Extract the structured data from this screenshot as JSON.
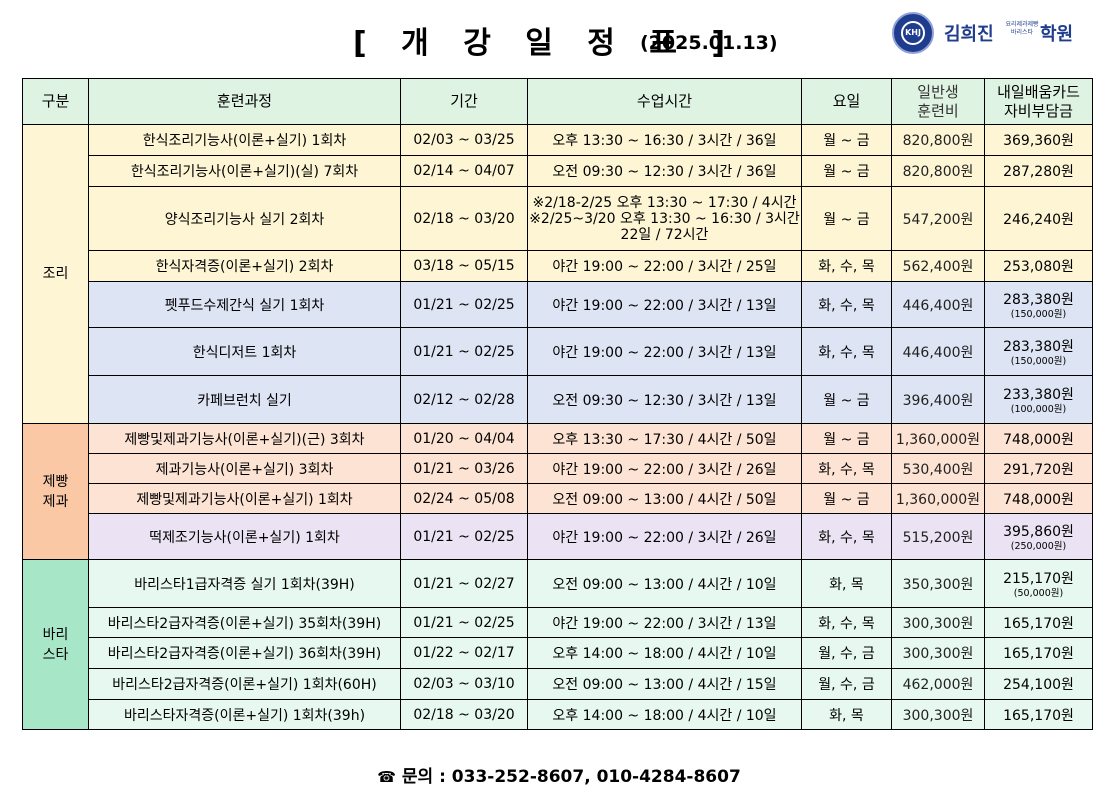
{
  "header": {
    "title": "[ 개 강 일 정 표 ]",
    "date": "(2025.01.13)"
  },
  "logo": {
    "emblem": "KHJ",
    "name": "김희진",
    "sub": "요리제과제빵 바리스타",
    "suffix": "학원"
  },
  "table": {
    "headers": {
      "category": "구분",
      "course": "훈련과정",
      "period": "기간",
      "class_time": "수업시간",
      "weekday": "요일",
      "fee_general": "일반생\n훈련비",
      "fee_card": "내일배움카드\n자비부담금"
    },
    "categories": {
      "cooking": "조리",
      "baking": "제빵\n제과",
      "barista": "바리\n스타"
    },
    "rows": [
      {
        "course": "한식조리기능사(이론+실기) 1회차",
        "period": "02/03 ~ 03/25",
        "time": "오후 13:30 ~ 16:30 / 3시간 / 36일",
        "days": "월 ~ 금",
        "fee": "820,800원",
        "card": "369,360원",
        "card_sub": ""
      },
      {
        "course": "한식조리기능사(이론+실기)(실) 7회차",
        "period": "02/14 ~ 04/07",
        "time": "오전 09:30 ~ 12:30 / 3시간 / 36일",
        "days": "월 ~ 금",
        "fee": "820,800원",
        "card": "287,280원",
        "card_sub": ""
      },
      {
        "course": "양식조리기능사 실기 2회차",
        "period": "02/18 ~ 03/20",
        "time": "※2/18-2/25 오후 13:30 ~ 17:30 / 4시간\n※2/25~3/20 오후 13:30 ~ 16:30 / 3시간\n22일 / 72시간",
        "days": "월 ~ 금",
        "fee": "547,200원",
        "card": "246,240원",
        "card_sub": ""
      },
      {
        "course": "한식자격증(이론+실기) 2회차",
        "period": "03/18 ~ 05/15",
        "time": "야간 19:00 ~ 22:00 / 3시간 / 25일",
        "days": "화, 수, 목",
        "fee": "562,400원",
        "card": "253,080원",
        "card_sub": ""
      },
      {
        "course": "펫푸드수제간식 실기 1회차",
        "period": "01/21 ~ 02/25",
        "time": "야간 19:00 ~ 22:00 / 3시간 / 13일",
        "days": "화, 수, 목",
        "fee": "446,400원",
        "card": "283,380원",
        "card_sub": "(150,000원)"
      },
      {
        "course": "한식디저트 1회차",
        "period": "01/21 ~ 02/25",
        "time": "야간 19:00 ~ 22:00 / 3시간 / 13일",
        "days": "화, 수, 목",
        "fee": "446,400원",
        "card": "283,380원",
        "card_sub": "(150,000원)"
      },
      {
        "course": "카페브런치 실기",
        "period": "02/12 ~ 02/28",
        "time": "오전 09:30 ~ 12:30 / 3시간 / 13일",
        "days": "월 ~ 금",
        "fee": "396,400원",
        "card": "233,380원",
        "card_sub": "(100,000원)"
      },
      {
        "course": "제빵및제과기능사(이론+실기)(근) 3회차",
        "period": "01/20 ~ 04/04",
        "time": "오후 13:30 ~ 17:30 / 4시간 / 50일",
        "days": "월 ~ 금",
        "fee": "1,360,000원",
        "card": "748,000원",
        "card_sub": ""
      },
      {
        "course": "제과기능사(이론+실기) 3회차",
        "period": "01/21 ~ 03/26",
        "time": "야간 19:00 ~ 22:00 / 3시간 / 26일",
        "days": "화, 수, 목",
        "fee": "530,400원",
        "card": "291,720원",
        "card_sub": ""
      },
      {
        "course": "제빵및제과기능사(이론+실기) 1회차",
        "period": "02/24 ~ 05/08",
        "time": "오전 09:00 ~ 13:00 / 4시간 / 50일",
        "days": "월 ~ 금",
        "fee": "1,360,000원",
        "card": "748,000원",
        "card_sub": ""
      },
      {
        "course": "떡제조기능사(이론+실기) 1회차",
        "period": "01/21 ~ 02/25",
        "time": "야간 19:00 ~ 22:00 / 3시간 / 26일",
        "days": "화, 수, 목",
        "fee": "515,200원",
        "card": "395,860원",
        "card_sub": "(250,000원)"
      },
      {
        "course": "바리스타1급자격증 실기 1회차(39H)",
        "period": "01/21 ~ 02/27",
        "time": "오전 09:00 ~ 13:00 / 4시간 / 10일",
        "days": "화, 목",
        "fee": "350,300원",
        "card": "215,170원",
        "card_sub": "(50,000원)"
      },
      {
        "course": "바리스타2급자격증(이론+실기) 35회차(39H)",
        "period": "01/21 ~ 02/25",
        "time": "야간 19:00 ~ 22:00 / 3시간 / 13일",
        "days": "화, 수, 목",
        "fee": "300,300원",
        "card": "165,170원",
        "card_sub": ""
      },
      {
        "course": "바리스타2급자격증(이론+실기) 36회차(39H)",
        "period": "01/22 ~ 02/17",
        "time": "오후 14:00 ~ 18:00 / 4시간 / 10일",
        "days": "월, 수, 금",
        "fee": "300,300원",
        "card": "165,170원",
        "card_sub": ""
      },
      {
        "course": "바리스타2급자격증(이론+실기) 1회차(60H)",
        "period": "02/03 ~ 03/10",
        "time": "오전 09:00 ~ 13:00 / 4시간 / 15일",
        "days": "월, 수, 금",
        "fee": "462,000원",
        "card": "254,100원",
        "card_sub": ""
      },
      {
        "course": "바리스타자격증(이론+실기) 1회차(39h)",
        "period": "02/18 ~ 03/20",
        "time": "오후 14:00 ~ 18:00 / 4시간 / 10일",
        "days": "화, 목",
        "fee": "300,300원",
        "card": "165,170원",
        "card_sub": ""
      }
    ]
  },
  "contact": {
    "icon": "phone-icon",
    "text": "문의 : 033-252-8607, 010-4284-8607"
  }
}
